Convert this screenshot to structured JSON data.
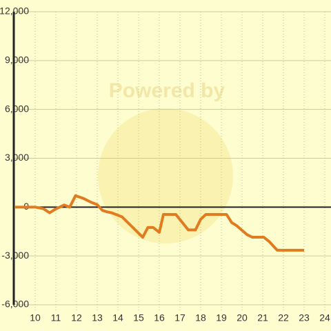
{
  "chart_data": {
    "type": "line",
    "watermark": "Powered by",
    "x": [
      9.0,
      10.0,
      10.4,
      10.7,
      10.97,
      11.4,
      11.67,
      11.95,
      12.3,
      12.7,
      13.0,
      13.25,
      13.5,
      13.7,
      14.2,
      15.2,
      15.45,
      15.7,
      16.0,
      16.2,
      16.8,
      17.4,
      17.75,
      18.0,
      18.25,
      19.25,
      19.5,
      19.75,
      20.25,
      20.5,
      21.05,
      21.3,
      21.7,
      23.0
    ],
    "series": [
      {
        "color": "#e07b20",
        "values": [
          0,
          0,
          -100,
          -350,
          -130,
          130,
          0,
          700,
          550,
          300,
          150,
          -200,
          -300,
          -350,
          -600,
          -1850,
          -1250,
          -1250,
          -1550,
          -450,
          -450,
          -1400,
          -1400,
          -750,
          -450,
          -450,
          -950,
          -1150,
          -1700,
          -1850,
          -1850,
          -2100,
          -2650,
          -2650
        ]
      }
    ],
    "xlim": [
      9,
      24.3
    ],
    "xticks": [
      10,
      11,
      12,
      13,
      14,
      15,
      16,
      17,
      18,
      19,
      20,
      21,
      22,
      23,
      24
    ],
    "ylim": [
      -6000,
      12000
    ],
    "yticks": [
      {
        "value": -6000,
        "label": "-6,000"
      },
      {
        "value": -3000,
        "label": "-3,000"
      },
      0,
      {
        "value": 3000,
        "label": "3,000"
      },
      {
        "value": 6000,
        "label": "6,000"
      },
      {
        "value": 9000,
        "label": "9,000"
      },
      {
        "value": 12000,
        "label": "12,000"
      }
    ],
    "grid": true
  }
}
